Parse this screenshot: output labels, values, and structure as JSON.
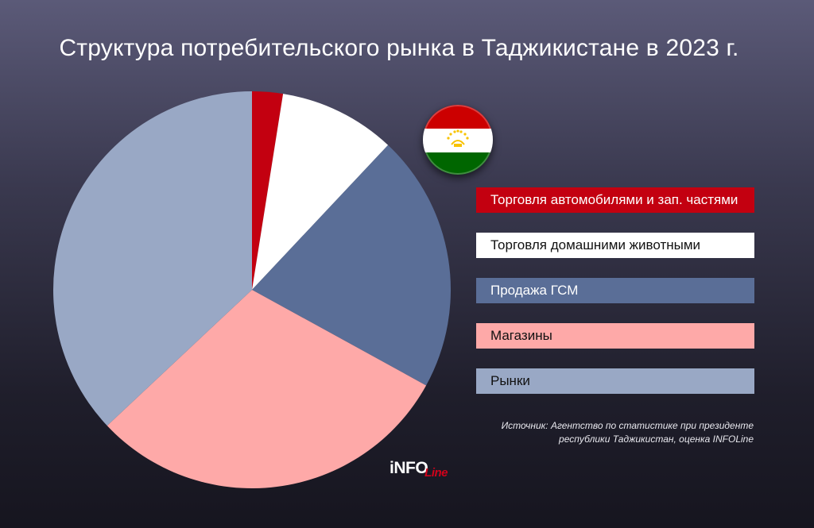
{
  "title": "Структура потребительского рынка в Таджикистане в 2023 г.",
  "chart_data": {
    "type": "pie",
    "title": "Структура потребительского рынка в Таджикистане в 2023 г.",
    "slices": [
      {
        "label": "Торговля автомобилями и зап. частями",
        "value": 2.5,
        "color": "#c30010",
        "text_color": "#ffffff"
      },
      {
        "label": "Торговля домашними животными",
        "value": 9.5,
        "color": "#ffffff",
        "text_color": "#111111"
      },
      {
        "label": "Продажа ГСМ",
        "value": 21.0,
        "color": "#5a6e97",
        "text_color": "#ffffff"
      },
      {
        "label": "Магазины",
        "value": 30.0,
        "color": "#fea9a8",
        "text_color": "#111111"
      },
      {
        "label": "Рынки",
        "value": 37.0,
        "color": "#99a8c5",
        "text_color": "#111111"
      }
    ],
    "legend_position": "right"
  },
  "source": {
    "line1": "Источник: Агентство по статистике при президенте",
    "line2": "республики Таджикистан, оценка INFOLine"
  },
  "logo": {
    "main": "iNFO",
    "script": "Line"
  },
  "flag_icon": "tajikistan-flag-icon"
}
